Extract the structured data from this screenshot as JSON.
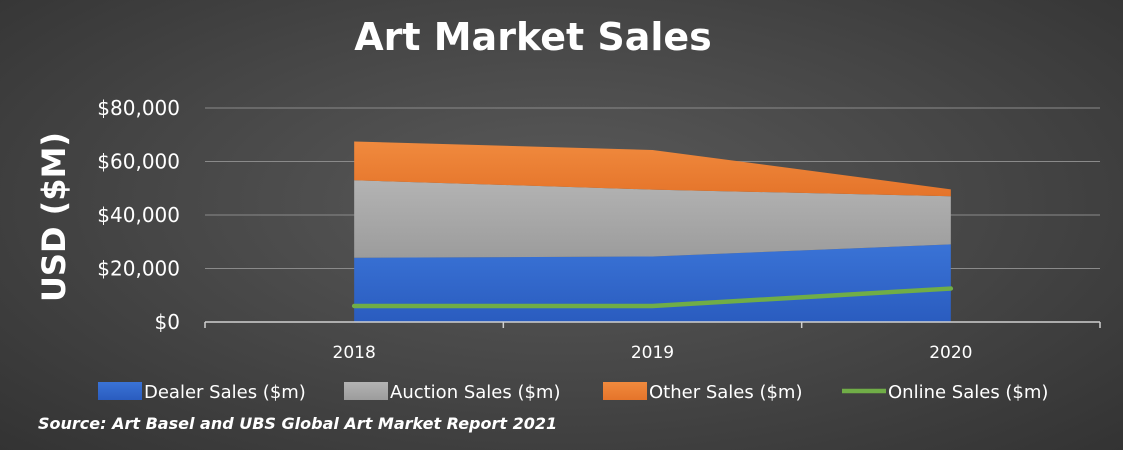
{
  "chart_data": {
    "type": "area",
    "title": "Art Market Sales",
    "ylabel": "USD ($M)",
    "xlabel": "",
    "categories": [
      "2018",
      "2019",
      "2020"
    ],
    "ylim": [
      0,
      80000
    ],
    "yticks": [
      "$0",
      "$20,000",
      "$40,000",
      "$60,000",
      "$80,000"
    ],
    "ytick_values": [
      0,
      20000,
      40000,
      60000,
      80000
    ],
    "grid": true,
    "legend_position": "bottom",
    "stacked_series": [
      {
        "name": "Dealer Sales ($m)",
        "color": "#2f66c9",
        "values": [
          24000,
          24500,
          29000
        ]
      },
      {
        "name": "Auction Sales ($m)",
        "color": "#a6a6a6",
        "values": [
          29000,
          25000,
          18000
        ]
      },
      {
        "name": "Other Sales ($m)",
        "color": "#ed7d31",
        "values": [
          14500,
          14800,
          2600
        ]
      }
    ],
    "line_series": [
      {
        "name": "Online Sales ($m)",
        "color": "#70ad47",
        "values": [
          6000,
          6000,
          12500
        ]
      }
    ]
  },
  "source": "Source: Art Basel and UBS Global Art Market Report 2021"
}
